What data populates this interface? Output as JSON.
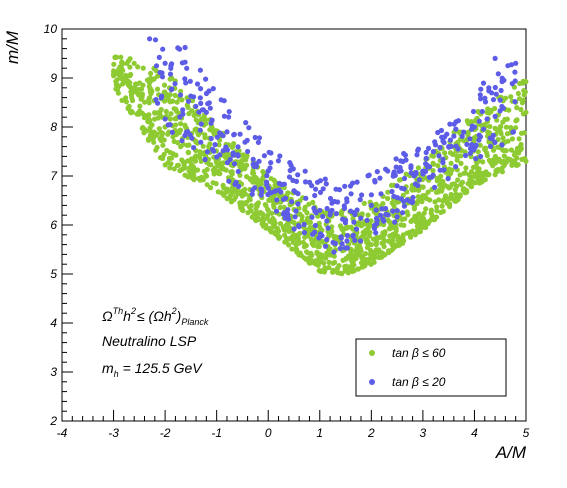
{
  "chart_data": {
    "type": "scatter",
    "xlabel": "A/M",
    "ylabel": "m/M",
    "xlim": [
      -4,
      5
    ],
    "ylim": [
      2,
      10
    ],
    "xticks": [
      "-4",
      "-3",
      "-2",
      "-1",
      "0",
      "1",
      "2",
      "3",
      "4",
      "5"
    ],
    "yticks": [
      "2",
      "3",
      "4",
      "5",
      "6",
      "7",
      "8",
      "9",
      "10"
    ],
    "grid": false,
    "legend_position": "bottom-right",
    "annotations": {
      "line1": {
        "omega": "Ω",
        "th": "Th",
        "h": "h",
        "two": "2",
        "le": "≤ (Ωh",
        "two_b": "2",
        "close": ")",
        "sub": "Planck"
      },
      "line2": "Neutralino LSP",
      "line3": {
        "m": "m",
        "sub": "h",
        "rest": " = 125.5 GeV"
      }
    },
    "series": [
      {
        "name": "tan β ≤ 60",
        "legend_label": "tan β ≤ 60",
        "color": "#8ecb33",
        "marker": "circle",
        "lower_envelope": [
          [
            -3.0,
            8.8
          ],
          [
            -2.0,
            7.2
          ],
          [
            -1.0,
            6.7
          ],
          [
            0.0,
            5.9
          ],
          [
            0.7,
            5.3
          ],
          [
            1.0,
            5.05
          ],
          [
            1.5,
            5.0
          ],
          [
            2.0,
            5.2
          ],
          [
            3.0,
            5.9
          ],
          [
            4.0,
            6.8
          ],
          [
            5.0,
            7.3
          ]
        ],
        "upper_envelope": [
          [
            -3.0,
            9.5
          ],
          [
            -2.0,
            9.2
          ],
          [
            -1.0,
            8.0
          ],
          [
            0.0,
            7.0
          ],
          [
            1.0,
            6.4
          ],
          [
            1.5,
            6.3
          ],
          [
            2.0,
            6.5
          ],
          [
            3.0,
            7.3
          ],
          [
            4.0,
            8.3
          ],
          [
            5.0,
            9.0
          ]
        ],
        "points_sample": [
          [
            -2.9,
            9.1
          ],
          [
            -2.6,
            9.3
          ],
          [
            -2.3,
            8.6
          ],
          [
            -2.0,
            8.0
          ],
          [
            -1.7,
            7.6
          ],
          [
            -1.3,
            7.3
          ],
          [
            -1.0,
            7.1
          ],
          [
            -0.5,
            6.6
          ],
          [
            0.0,
            6.3
          ],
          [
            0.5,
            5.8
          ],
          [
            1.0,
            5.4
          ],
          [
            1.5,
            5.3
          ],
          [
            2.0,
            5.6
          ],
          [
            2.5,
            6.1
          ],
          [
            3.0,
            6.6
          ],
          [
            3.5,
            7.0
          ],
          [
            4.0,
            7.6
          ],
          [
            4.5,
            8.0
          ],
          [
            5.0,
            8.3
          ]
        ]
      },
      {
        "name": "tan β ≤ 20",
        "legend_label": "tan β ≤ 20",
        "color": "#5c5ce6",
        "marker": "circle",
        "lower_envelope": [
          [
            -2.7,
            9.0
          ],
          [
            -2.0,
            8.0
          ],
          [
            -1.0,
            7.0
          ],
          [
            0.0,
            6.3
          ],
          [
            1.0,
            5.5
          ],
          [
            1.5,
            5.4
          ],
          [
            2.0,
            5.6
          ],
          [
            3.0,
            6.6
          ],
          [
            4.0,
            7.3
          ],
          [
            4.8,
            7.8
          ]
        ],
        "upper_envelope": [
          [
            -2.2,
            9.85
          ],
          [
            -1.5,
            9.6
          ],
          [
            -1.0,
            8.8
          ],
          [
            0.0,
            7.6
          ],
          [
            1.0,
            7.0
          ],
          [
            1.5,
            6.8
          ],
          [
            2.0,
            7.1
          ],
          [
            3.0,
            7.7
          ],
          [
            4.0,
            8.6
          ],
          [
            4.4,
            9.45
          ],
          [
            4.9,
            9.3
          ]
        ],
        "points_sample": [
          [
            -2.3,
            9.8
          ],
          [
            -2.0,
            9.3
          ],
          [
            -1.6,
            8.9
          ],
          [
            -1.2,
            8.3
          ],
          [
            -0.8,
            7.9
          ],
          [
            -0.4,
            7.5
          ],
          [
            0.0,
            7.1
          ],
          [
            0.5,
            6.7
          ],
          [
            1.0,
            6.3
          ],
          [
            1.5,
            6.1
          ],
          [
            2.0,
            6.4
          ],
          [
            2.5,
            6.8
          ],
          [
            3.0,
            7.1
          ],
          [
            3.5,
            7.6
          ],
          [
            4.0,
            8.0
          ],
          [
            4.4,
            9.4
          ],
          [
            4.8,
            9.3
          ]
        ]
      }
    ]
  }
}
